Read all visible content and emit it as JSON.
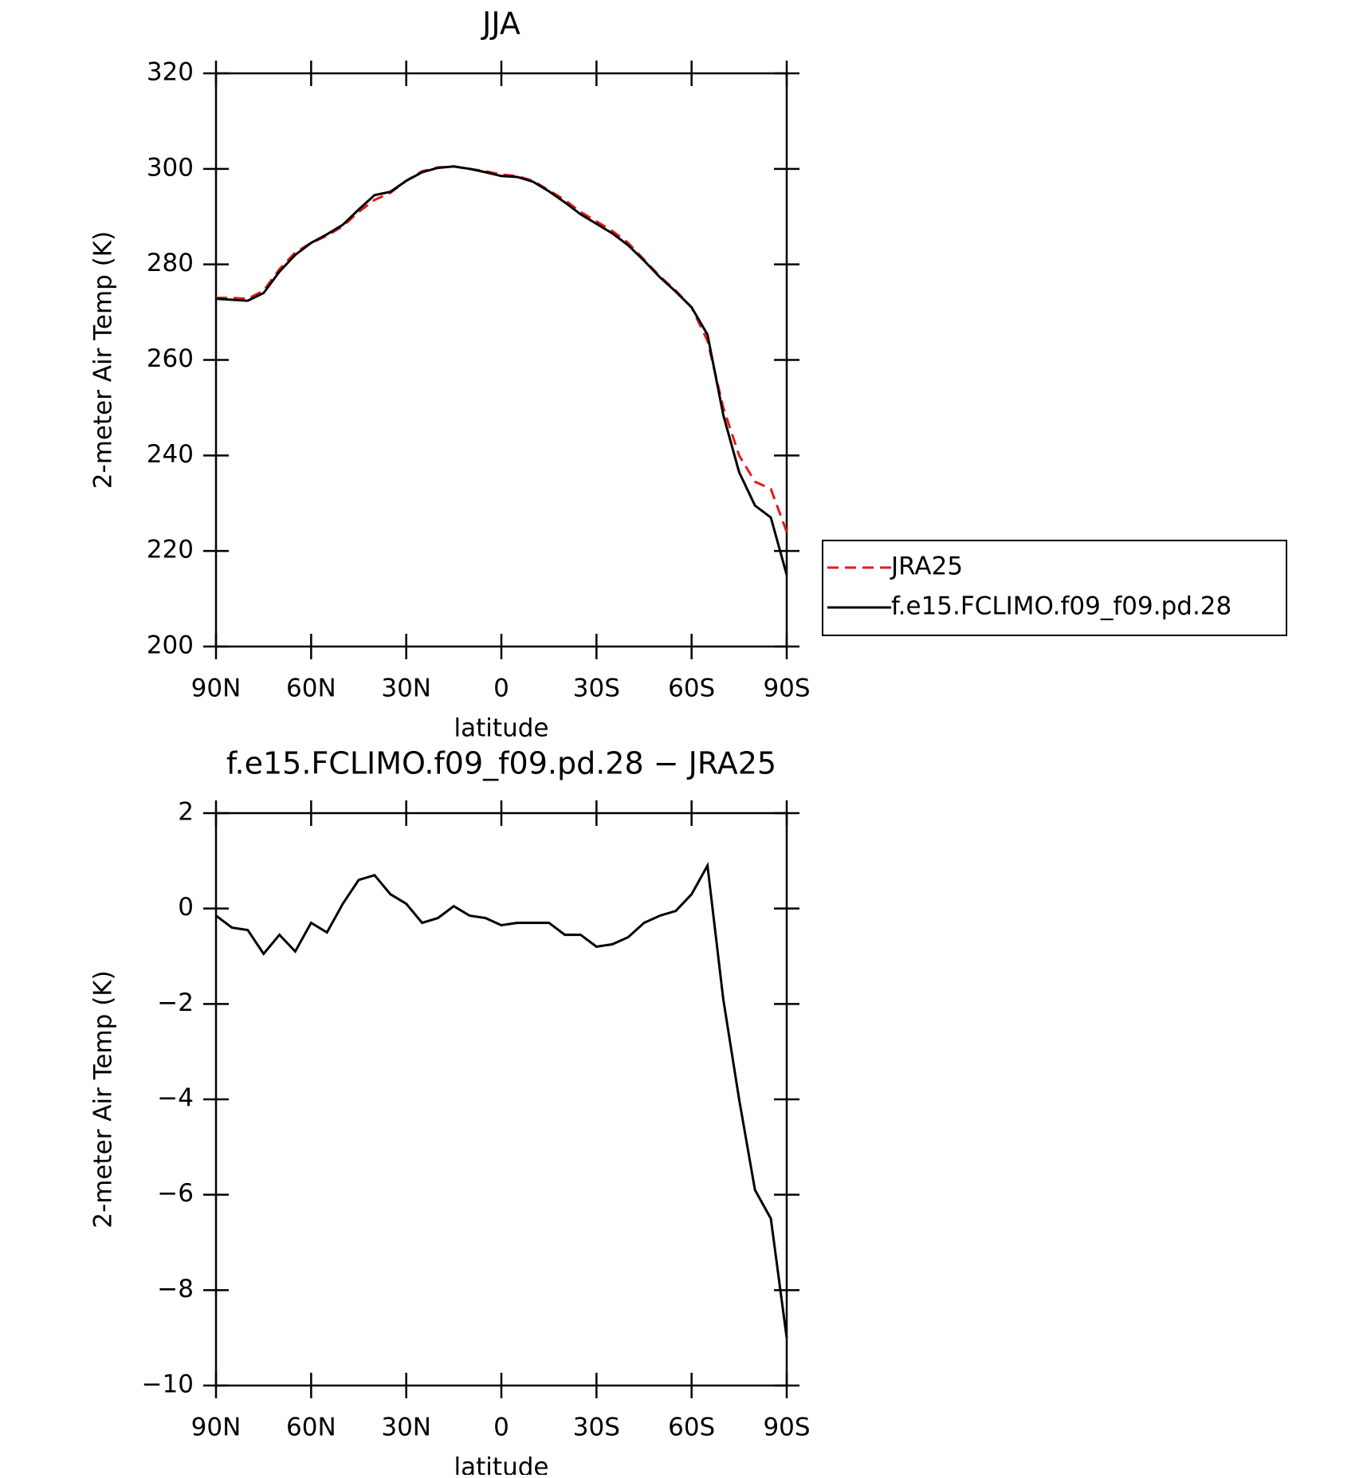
{
  "chart_data": [
    {
      "type": "line",
      "title": "JJA",
      "xlabel": "latitude",
      "ylabel": "2-meter Air Temp (K)",
      "x": [
        90,
        85,
        80,
        75,
        70,
        65,
        60,
        55,
        50,
        45,
        40,
        35,
        30,
        25,
        20,
        15,
        10,
        5,
        0,
        -5,
        -10,
        -15,
        -20,
        -25,
        -30,
        -35,
        -40,
        -45,
        -50,
        -55,
        -60,
        -65,
        -70,
        -75,
        -80,
        -85,
        -90
      ],
      "series": [
        {
          "name": "JRA25",
          "color": "#e41a1c",
          "dash": true,
          "values": [
            273,
            273,
            272.8,
            274.5,
            279,
            282.5,
            284.5,
            286,
            288,
            291,
            293.5,
            295,
            297.5,
            299.5,
            300.3,
            300.5,
            300,
            299.5,
            298.8,
            298.5,
            297.5,
            295.5,
            293.5,
            291,
            289,
            287,
            284.5,
            281,
            277.5,
            274.5,
            271,
            264,
            250,
            240,
            234.5,
            233,
            224
          ]
        },
        {
          "name": "f.e15.FCLIMO.f09_f09.pd.28",
          "color": "#000000",
          "dash": false,
          "values": [
            272.8,
            272.6,
            272.4,
            274,
            278.5,
            282,
            284.5,
            286.3,
            288.3,
            291.5,
            294.5,
            295.2,
            297.5,
            299.3,
            300.2,
            300.5,
            300,
            299.3,
            298.5,
            298.3,
            297.3,
            295.3,
            293,
            290.5,
            288.5,
            286.5,
            284,
            280.8,
            277.3,
            274.3,
            271,
            265.3,
            248.5,
            236.5,
            229.5,
            227,
            215
          ]
        }
      ],
      "xlim": [
        90,
        -90
      ],
      "xticks": [
        {
          "value": 90,
          "label": "90N"
        },
        {
          "value": 60,
          "label": "60N"
        },
        {
          "value": 30,
          "label": "30N"
        },
        0,
        {
          "value": -30,
          "label": "30S"
        },
        {
          "value": -60,
          "label": "60S"
        },
        {
          "value": -90,
          "label": "90S"
        }
      ],
      "ylim": [
        200,
        320
      ],
      "yticks": [
        200,
        220,
        240,
        260,
        280,
        300,
        320
      ],
      "legend": "right"
    },
    {
      "type": "line",
      "title": "f.e15.FCLIMO.f09_f09.pd.28 − JRA25",
      "xlabel": "latitude",
      "ylabel": "2-meter Air Temp (K)",
      "x": [
        90,
        85,
        80,
        75,
        70,
        65,
        60,
        55,
        50,
        45,
        40,
        35,
        30,
        25,
        20,
        15,
        10,
        5,
        0,
        -5,
        -10,
        -15,
        -20,
        -25,
        -30,
        -35,
        -40,
        -45,
        -50,
        -55,
        -60,
        -65,
        -70,
        -75,
        -80,
        -85,
        -90
      ],
      "series": [
        {
          "color": "#000000",
          "dash": false,
          "values": [
            -0.15,
            -0.4,
            -0.45,
            -0.95,
            -0.55,
            -0.9,
            -0.3,
            -0.5,
            0.1,
            0.6,
            0.7,
            0.3,
            0.1,
            -0.3,
            -0.2,
            0.05,
            -0.15,
            -0.2,
            -0.35,
            -0.3,
            -0.3,
            -0.3,
            -0.55,
            -0.55,
            -0.8,
            -0.75,
            -0.6,
            -0.3,
            -0.15,
            -0.05,
            0.3,
            0.9,
            -1.9,
            -4,
            -5.9,
            -6.5,
            -9
          ]
        }
      ],
      "xlim": [
        90,
        -90
      ],
      "xticks": [
        {
          "value": 90,
          "label": "90N"
        },
        {
          "value": 60,
          "label": "60N"
        },
        {
          "value": 30,
          "label": "30N"
        },
        0,
        {
          "value": -30,
          "label": "30S"
        },
        {
          "value": -60,
          "label": "60S"
        },
        {
          "value": -90,
          "label": "90S"
        }
      ],
      "ylim": [
        -10,
        2
      ],
      "yticks": [
        {
          "value": -10,
          "label": "−10"
        },
        {
          "value": -8,
          "label": "−8"
        },
        {
          "value": -6,
          "label": "−6"
        },
        {
          "value": -4,
          "label": "−4"
        },
        {
          "value": -2,
          "label": "−2"
        },
        0,
        2
      ]
    }
  ]
}
